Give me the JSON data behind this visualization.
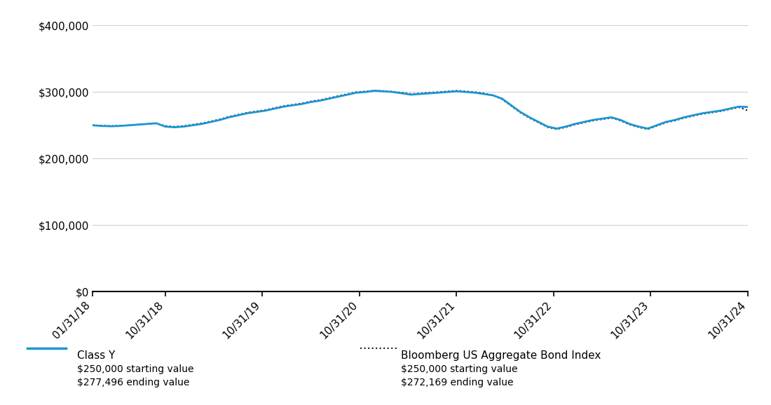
{
  "class_y_label": "Class Y",
  "class_y_start": "$250,000 starting value",
  "class_y_end": "$277,496 ending value",
  "bloomberg_label": "Bloomberg US Aggregate Bond Index",
  "bloomberg_start": "$250,000 starting value",
  "bloomberg_end": "$272,169 ending value",
  "class_y_color": "#1a96d4",
  "bloomberg_color": "#1a1a1a",
  "background_color": "#ffffff",
  "ylim": [
    0,
    420000
  ],
  "yticks": [
    0,
    100000,
    200000,
    300000,
    400000
  ],
  "ytick_labels": [
    "$0",
    "$100,000",
    "$200,000",
    "$300,000",
    "$400,000"
  ],
  "xtick_labels": [
    "01/31/18",
    "10/31/18",
    "10/31/19",
    "10/31/20",
    "10/31/21",
    "10/31/22",
    "10/31/23",
    "10/31/24"
  ],
  "xtick_months": [
    0,
    9,
    21,
    33,
    45,
    57,
    69,
    81
  ],
  "total_months": 81,
  "class_y_values": [
    250000,
    249000,
    248500,
    249000,
    250000,
    251000,
    252000,
    253000,
    248000,
    247000,
    248000,
    250000,
    252000,
    255000,
    258000,
    262000,
    265000,
    268000,
    270000,
    272000,
    275000,
    278000,
    280000,
    282000,
    285000,
    287000,
    290000,
    293000,
    296000,
    299000,
    300000,
    302000,
    301000,
    300000,
    298000,
    296000,
    297000,
    298000,
    299000,
    300000,
    301000,
    300000,
    299000,
    297000,
    295000,
    290000,
    280000,
    270000,
    262000,
    255000,
    248000,
    245000,
    248000,
    252000,
    255000,
    258000,
    260000,
    262000,
    258000,
    252000,
    248000,
    245000,
    250000,
    255000,
    258000,
    262000,
    265000,
    268000,
    270000,
    272000,
    275000,
    278000,
    277496
  ],
  "bloomberg_values": [
    250000,
    249500,
    249000,
    249500,
    250000,
    251000,
    252000,
    253000,
    249000,
    248000,
    249000,
    251000,
    253000,
    256000,
    259000,
    263000,
    266000,
    269000,
    271000,
    273000,
    276000,
    279000,
    281000,
    283000,
    286000,
    288000,
    291000,
    294000,
    297000,
    300000,
    301000,
    302000,
    301500,
    300500,
    299000,
    297000,
    298000,
    299000,
    300000,
    301000,
    302000,
    301000,
    300000,
    298000,
    295000,
    289000,
    279000,
    269000,
    261000,
    254000,
    247000,
    244000,
    247000,
    251000,
    254000,
    257000,
    259000,
    261000,
    257000,
    251000,
    247000,
    244000,
    249000,
    254000,
    257000,
    261000,
    264000,
    267000,
    269000,
    271000,
    274000,
    277000,
    272169
  ]
}
